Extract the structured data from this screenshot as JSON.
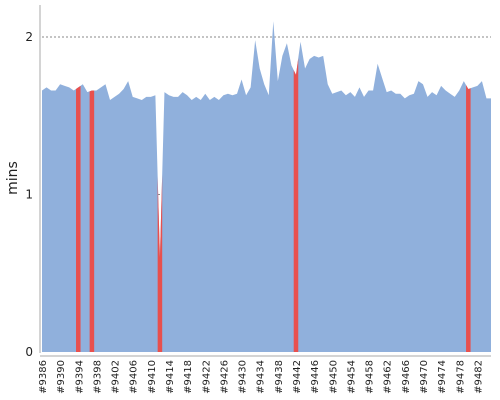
{
  "chart_data": {
    "type": "area",
    "title": "",
    "xlabel": "",
    "ylabel": "mins",
    "ylim": [
      0,
      2.2
    ],
    "yticks": [
      0,
      1,
      2
    ],
    "grid": true,
    "colors": {
      "area": "#90b0dc",
      "highlight": "#e8504e",
      "grid": "#888888",
      "axis": "#aaaaaa"
    },
    "x_start": 9386,
    "x_tick_labels": [
      "#9386",
      "#9390",
      "#9394",
      "#9398",
      "#9402",
      "#9406",
      "#9410",
      "#9414",
      "#9418",
      "#9422",
      "#9426",
      "#9430",
      "#9434",
      "#9438",
      "#9442",
      "#9446",
      "#9450",
      "#9454",
      "#9458",
      "#9462",
      "#9466",
      "#9470",
      "#9474",
      "#9478",
      "#9482"
    ],
    "values": [
      1.66,
      1.68,
      1.66,
      1.66,
      1.7,
      1.69,
      1.68,
      1.66,
      1.68,
      1.7,
      1.65,
      1.66,
      1.66,
      1.68,
      1.7,
      1.6,
      1.62,
      1.64,
      1.67,
      1.72,
      1.62,
      1.61,
      1.6,
      1.62,
      1.62,
      1.63,
      0.6,
      1.65,
      1.63,
      1.62,
      1.62,
      1.65,
      1.63,
      1.6,
      1.62,
      1.6,
      1.64,
      1.6,
      1.62,
      1.6,
      1.63,
      1.64,
      1.63,
      1.64,
      1.73,
      1.63,
      1.68,
      1.98,
      1.8,
      1.7,
      1.63,
      2.1,
      1.72,
      1.88,
      1.96,
      1.82,
      1.76,
      1.97,
      1.8,
      1.86,
      1.88,
      1.87,
      1.88,
      1.7,
      1.64,
      1.65,
      1.66,
      1.63,
      1.65,
      1.62,
      1.68,
      1.62,
      1.66,
      1.66,
      1.83,
      1.74,
      1.65,
      1.66,
      1.64,
      1.64,
      1.61,
      1.63,
      1.64,
      1.72,
      1.7,
      1.62,
      1.65,
      1.63,
      1.69,
      1.66,
      1.64,
      1.62,
      1.66,
      1.72,
      1.67,
      1.68,
      1.69,
      1.72,
      1.61,
      1.61
    ],
    "failed_builds": [
      9394,
      9397,
      9412,
      9442,
      9480
    ]
  }
}
